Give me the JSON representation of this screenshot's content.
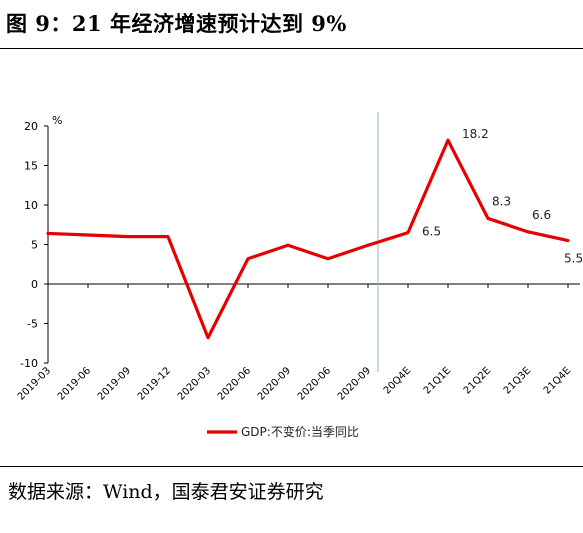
{
  "figure": {
    "title": "图 9：21 年经济增速预计达到 9%",
    "source": "数据来源：Wind，国泰君安证券研究"
  },
  "chart_data": {
    "type": "line",
    "x": [
      "2019-03",
      "2019-06",
      "2019-09",
      "2019-12",
      "2020-03",
      "2020-06",
      "2020-09",
      "2020-06",
      "2020-09",
      "20Q4E",
      "21Q1E",
      "21Q2E",
      "21Q3E",
      "21Q4E"
    ],
    "series": [
      {
        "name": "GDP:不变价:当季同比",
        "color": "#e60000",
        "values": [
          6.4,
          6.2,
          6.0,
          6.0,
          -6.8,
          3.2,
          4.9,
          3.2,
          4.9,
          6.5,
          18.2,
          8.3,
          6.6,
          5.5
        ]
      }
    ],
    "data_labels": [
      {
        "index": 9,
        "text": "6.5"
      },
      {
        "index": 10,
        "text": "18.2"
      },
      {
        "index": 11,
        "text": "8.3"
      },
      {
        "index": 12,
        "text": "6.6"
      },
      {
        "index": 13,
        "text": "5.5"
      }
    ],
    "ylabel": "%",
    "ylim": [
      -10,
      20
    ],
    "yticks": [
      -10,
      -5,
      0,
      5,
      10,
      15,
      20
    ],
    "divider_after_index": 8,
    "divider_color": "#8eb4d8",
    "grid": false,
    "legend_position": "bottom-center"
  }
}
